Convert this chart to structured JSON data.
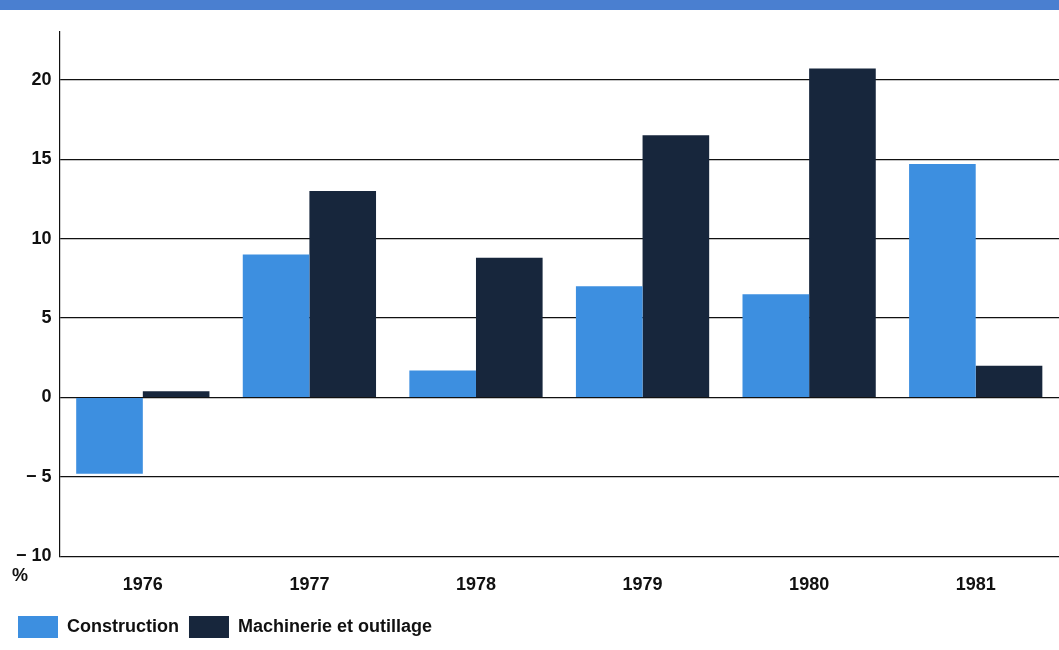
{
  "chart_data": {
    "type": "bar",
    "ylabel": "%",
    "categories": [
      "1976",
      "1977",
      "1978",
      "1979",
      "1980",
      "1981"
    ],
    "series": [
      {
        "name": "Construction",
        "color": "#3d8fe0",
        "values": [
          -4.8,
          9,
          1.7,
          7,
          6.5,
          14.7
        ]
      },
      {
        "name": "Machinerie et outillage",
        "color": "#17263c",
        "values": [
          0.4,
          13,
          8.8,
          16.5,
          20.7,
          2
        ]
      }
    ],
    "ylim": [
      -10,
      23
    ],
    "yticks": [
      -10,
      -5,
      0,
      5,
      10,
      15,
      20
    ],
    "grid": "y",
    "legend": "bottom left"
  }
}
